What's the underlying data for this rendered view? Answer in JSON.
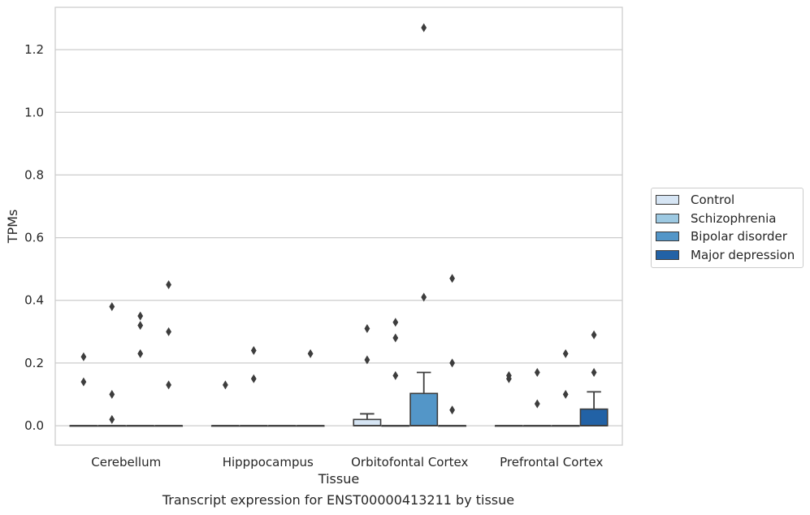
{
  "chart_data": {
    "type": "box",
    "title": "Transcript expression for ENST00000413211 by tissue",
    "xlabel": "Tissue",
    "ylabel": "TPMs",
    "ylim": [
      -0.062,
      1.335
    ],
    "yticks": [
      0.0,
      0.2,
      0.4,
      0.6,
      0.8,
      1.0,
      1.2
    ],
    "ytick_labels": [
      "0.0",
      "0.2",
      "0.4",
      "0.6",
      "0.8",
      "1.0",
      "1.2"
    ],
    "grid": "horizontal",
    "legend_position": "right",
    "categories": [
      "Cerebellum",
      "Hipppocampus",
      "Orbitofontal Cortex",
      "Prefrontal Cortex"
    ],
    "series": [
      {
        "name": "Control",
        "color": "#d6e5f4",
        "boxes": [
          {
            "q1": 0,
            "median": 0,
            "q3": 0,
            "whisker_low": 0,
            "whisker_high": 0,
            "outliers": [
              0.22,
              0.14
            ]
          },
          {
            "q1": 0,
            "median": 0,
            "q3": 0,
            "whisker_low": 0,
            "whisker_high": 0,
            "outliers": [
              0.13
            ]
          },
          {
            "q1": 0,
            "median": 0,
            "q3": 0.02,
            "whisker_low": 0,
            "whisker_high": 0.038,
            "outliers": [
              0.31,
              0.21
            ]
          },
          {
            "q1": 0,
            "median": 0,
            "q3": 0,
            "whisker_low": 0,
            "whisker_high": 0,
            "outliers": [
              0.16,
              0.15
            ]
          }
        ]
      },
      {
        "name": "Schizophrenia",
        "color": "#9dc9e2",
        "boxes": [
          {
            "q1": 0,
            "median": 0,
            "q3": 0,
            "whisker_low": 0,
            "whisker_high": 0,
            "outliers": [
              0.38,
              0.1,
              0.02
            ]
          },
          {
            "q1": 0,
            "median": 0,
            "q3": 0,
            "whisker_low": 0,
            "whisker_high": 0,
            "outliers": [
              0.24,
              0.15
            ]
          },
          {
            "q1": 0,
            "median": 0,
            "q3": 0,
            "whisker_low": 0,
            "whisker_high": 0,
            "outliers": [
              0.33,
              0.28,
              0.16
            ]
          },
          {
            "q1": 0,
            "median": 0,
            "q3": 0,
            "whisker_low": 0,
            "whisker_high": 0,
            "outliers": [
              0.17,
              0.07
            ]
          }
        ]
      },
      {
        "name": "Bipolar disorder",
        "color": "#5396c8",
        "boxes": [
          {
            "q1": 0,
            "median": 0,
            "q3": 0,
            "whisker_low": 0,
            "whisker_high": 0,
            "outliers": [
              0.35,
              0.32,
              0.23
            ]
          },
          {
            "q1": 0,
            "median": 0,
            "q3": 0,
            "whisker_low": 0,
            "whisker_high": 0,
            "outliers": []
          },
          {
            "q1": 0,
            "median": 0,
            "q3": 0.103,
            "whisker_low": 0,
            "whisker_high": 0.17,
            "outliers": [
              1.27,
              0.41
            ]
          },
          {
            "q1": 0,
            "median": 0,
            "q3": 0,
            "whisker_low": 0,
            "whisker_high": 0,
            "outliers": [
              0.23,
              0.1
            ]
          }
        ]
      },
      {
        "name": "Major depression",
        "color": "#2262a6",
        "boxes": [
          {
            "q1": 0,
            "median": 0,
            "q3": 0,
            "whisker_low": 0,
            "whisker_high": 0,
            "outliers": [
              0.45,
              0.3,
              0.13
            ]
          },
          {
            "q1": 0,
            "median": 0,
            "q3": 0,
            "whisker_low": 0,
            "whisker_high": 0,
            "outliers": [
              0.23
            ]
          },
          {
            "q1": 0,
            "median": 0,
            "q3": 0,
            "whisker_low": 0,
            "whisker_high": 0,
            "outliers": [
              0.47,
              0.2,
              0.05
            ]
          },
          {
            "q1": 0,
            "median": 0,
            "q3": 0.053,
            "whisker_low": 0,
            "whisker_high": 0.108,
            "outliers": [
              0.29,
              0.17
            ]
          }
        ]
      }
    ]
  }
}
